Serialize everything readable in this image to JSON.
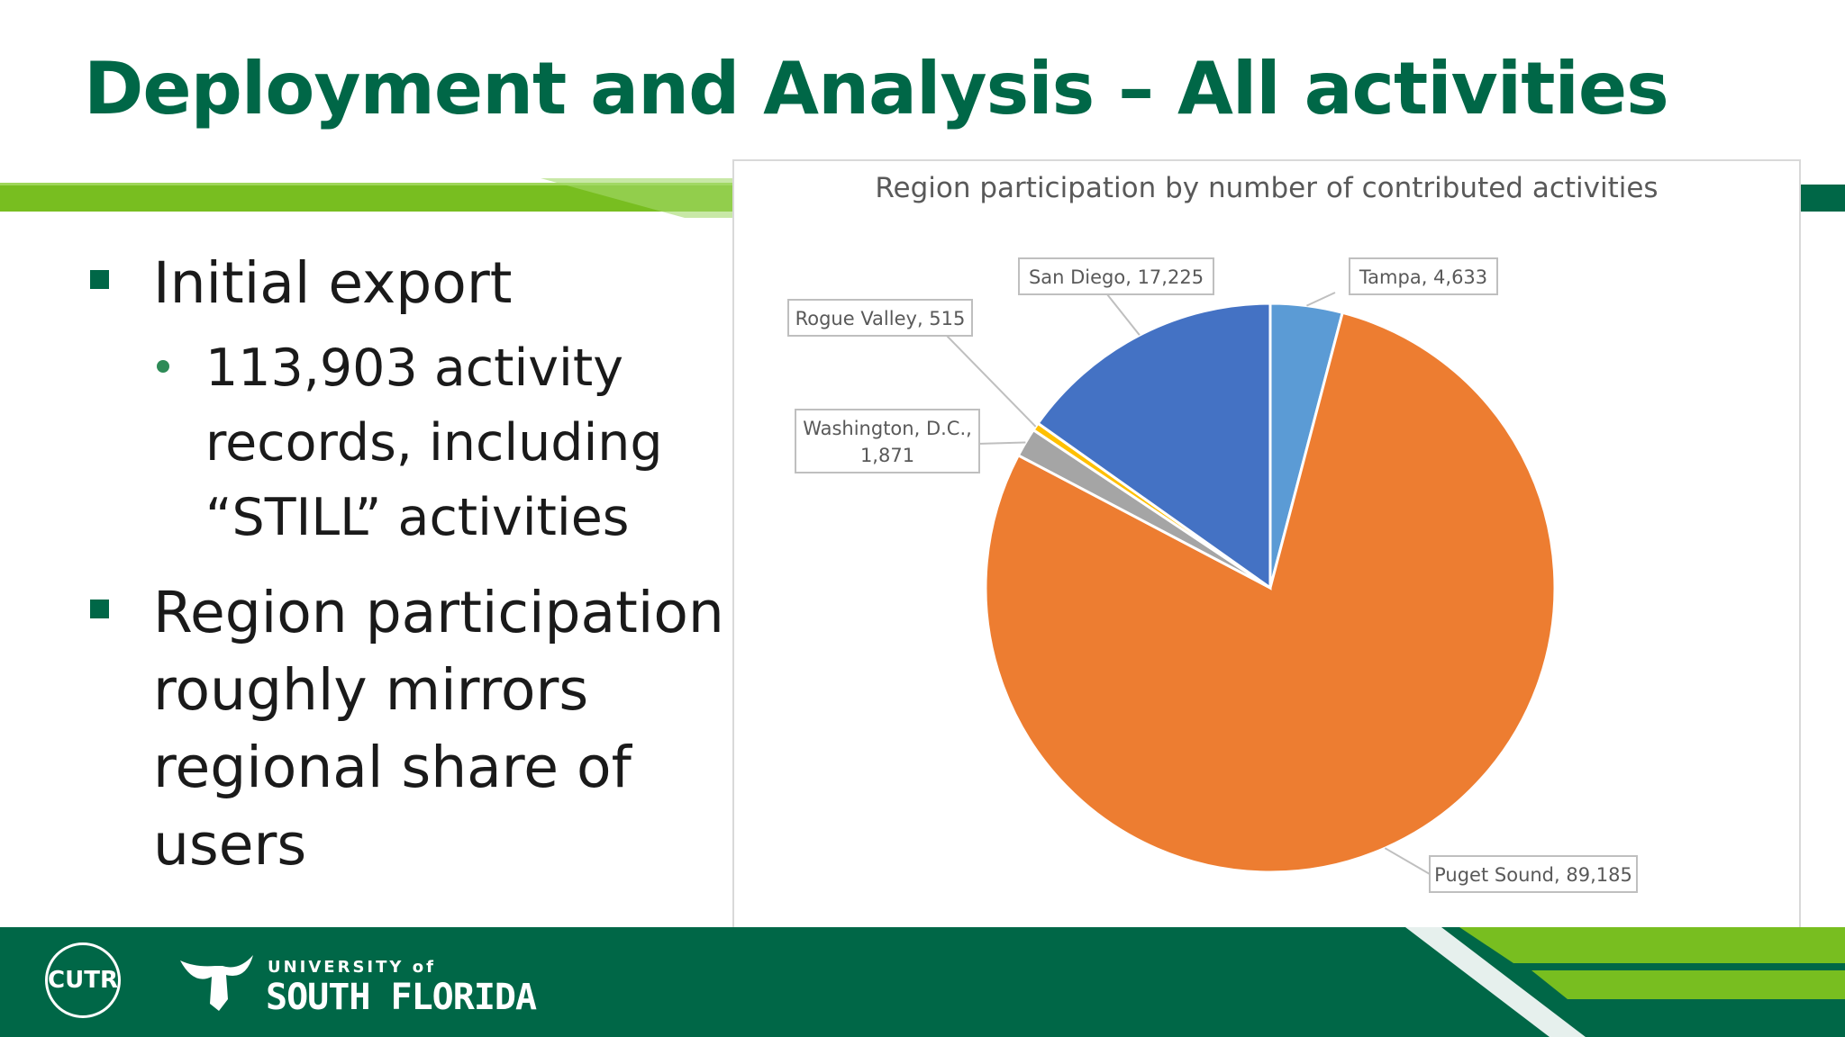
{
  "slide": {
    "title": "Deployment and Analysis – All activities",
    "bullets": [
      {
        "level": 1,
        "lines": [
          "Initial export"
        ]
      },
      {
        "level": 2,
        "lines": [
          "113,903 activity",
          "records, including",
          "“STILL” activities"
        ]
      },
      {
        "level": 1,
        "lines": [
          "Region participation",
          "roughly mirrors",
          "regional share of",
          "users"
        ]
      }
    ]
  },
  "footer": {
    "logo_cutr": "CUTR",
    "usf_small": "UNIVERSITY of",
    "usf_big": "SOUTH FLORIDA"
  },
  "colors": {
    "title_green": "#006747",
    "accent_lime": "#78be20",
    "footer_green": "#006747"
  },
  "chart_data": {
    "type": "pie",
    "title": "Region participation by number of contributed activities",
    "start_angle_deg": 0,
    "direction": "clockwise",
    "data_labels": "category, value",
    "slices": [
      {
        "label": "Tampa",
        "value": 4633,
        "display": "Tampa, 4,633",
        "color": "#5b9bd5"
      },
      {
        "label": "Puget Sound",
        "value": 89185,
        "display": "Puget Sound, 89,185",
        "color": "#ed7d31"
      },
      {
        "label": "Washington, D.C.",
        "value": 1871,
        "display": [
          "Washington, D.C.,",
          "1,871"
        ],
        "color": "#a5a5a5"
      },
      {
        "label": "Rogue Valley",
        "value": 515,
        "display": "Rogue Valley, 515",
        "color": "#ffc000"
      },
      {
        "label": "San Diego",
        "value": 17225,
        "display": "San Diego, 17,225",
        "color": "#4472c4"
      }
    ]
  }
}
